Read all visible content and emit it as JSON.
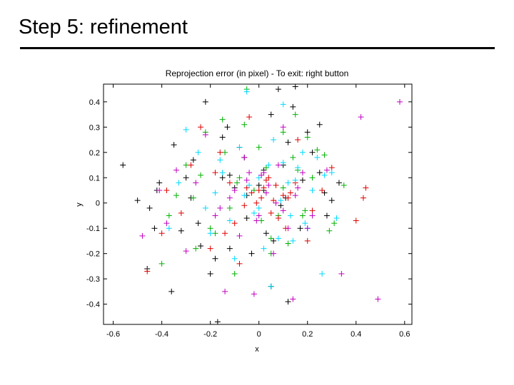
{
  "slide": {
    "title": "Step 5: refinement"
  },
  "chart_data": {
    "type": "scatter",
    "title": "Reprojection error (in pixel) - To exit: right button",
    "xlabel": "x",
    "ylabel": "y",
    "xlim": [
      -0.64,
      0.63
    ],
    "ylim": [
      -0.48,
      0.47
    ],
    "xticks": [
      "-0.6",
      "-0.4",
      "-0.2",
      "0",
      "0.2",
      "0.4",
      "0.6"
    ],
    "yticks": [
      "0.4",
      "0.3",
      "0.2",
      "0.1",
      "0",
      "-0.1",
      "-0.2",
      "-0.3",
      "-0.4"
    ],
    "marker": "+",
    "grid": false,
    "series": [
      {
        "color": "#000000",
        "x": [
          -0.56,
          -0.5,
          -0.43,
          -0.46,
          -0.42,
          -0.41,
          -0.35,
          -0.32,
          -0.27,
          -0.22,
          -0.17,
          -0.13,
          -0.12,
          -0.08,
          -0.05,
          0.0,
          0.05,
          0.08,
          0.12,
          0.15,
          0.2,
          0.25,
          0.27,
          0.3,
          0.17,
          0.02,
          -0.03,
          -0.1,
          -0.15,
          -0.2,
          -0.25,
          -0.28,
          0.33,
          0.12,
          0.05,
          -0.45,
          -0.36,
          -0.15,
          0.03,
          0.1,
          0.22,
          0.28,
          -0.05,
          0.09,
          -0.3,
          -0.24,
          0.14,
          0.25,
          -0.18,
          0.18,
          0.02,
          -0.06,
          0.06,
          0.11,
          -0.12
        ],
        "y": [
          0.15,
          0.01,
          -0.1,
          -0.26,
          0.05,
          0.08,
          0.23,
          -0.11,
          0.17,
          0.4,
          -0.47,
          0.3,
          -0.18,
          0.22,
          -0.06,
          0.07,
          0.35,
          0.45,
          -0.39,
          0.46,
          0.28,
          0.31,
          0.04,
          0.01,
          -0.1,
          0.13,
          -0.2,
          0.06,
          0.26,
          -0.28,
          -0.08,
          0.02,
          0.08,
          0.24,
          -0.33,
          -0.02,
          -0.35,
          0.1,
          -0.12,
          0.15,
          0.2,
          -0.05,
          0.03,
          -0.01,
          0.1,
          -0.17,
          0.38,
          0.12,
          -0.22,
          0.09,
          0.05,
          0.18,
          -0.15,
          0.02,
          0.11
        ]
      },
      {
        "color": "#00b000",
        "x": [
          -0.4,
          -0.37,
          -0.34,
          -0.3,
          -0.26,
          -0.22,
          -0.2,
          -0.15,
          -0.1,
          -0.05,
          0.0,
          0.05,
          0.1,
          0.15,
          0.18,
          0.22,
          0.27,
          0.31,
          0.35,
          0.05,
          0.1,
          -0.08,
          -0.12,
          0.14,
          -0.02,
          0.2,
          -0.18,
          0.24,
          -0.27,
          0.08,
          0.03,
          0.12,
          -0.06,
          -0.14,
          0.19,
          0.29,
          -0.24,
          0.01,
          -0.09,
          0.16
        ],
        "y": [
          -0.24,
          -0.05,
          0.03,
          0.15,
          -0.18,
          0.28,
          -0.1,
          0.33,
          -0.28,
          0.45,
          0.22,
          -0.14,
          0.06,
          0.35,
          -0.05,
          0.1,
          0.19,
          -0.08,
          0.07,
          -0.2,
          0.28,
          0.1,
          -0.02,
          0.18,
          0.05,
          0.26,
          -0.12,
          0.21,
          0.02,
          -0.05,
          0.14,
          -0.16,
          0.31,
          0.2,
          -0.03,
          -0.11,
          0.11,
          -0.07,
          0.08,
          0.13
        ]
      },
      {
        "color": "#e00000",
        "x": [
          -0.46,
          -0.4,
          -0.38,
          -0.32,
          -0.28,
          -0.24,
          -0.2,
          -0.16,
          -0.12,
          -0.08,
          -0.04,
          0.0,
          0.04,
          0.08,
          0.12,
          0.16,
          0.2,
          0.26,
          0.3,
          0.4,
          0.44,
          0.43,
          -0.1,
          0.06,
          -0.03,
          0.02,
          -0.06,
          0.1,
          0.15,
          -0.18,
          0.22,
          0.07,
          0.01,
          -0.01,
          0.03,
          -0.05,
          0.11,
          0.05,
          0.13,
          -0.14
        ],
        "y": [
          -0.27,
          -0.12,
          0.05,
          -0.04,
          0.15,
          0.3,
          -0.18,
          0.2,
          0.08,
          -0.24,
          0.34,
          0.05,
          0.1,
          -0.06,
          0.02,
          0.25,
          -0.15,
          0.05,
          0.14,
          -0.07,
          0.06,
          0.02,
          -0.08,
          0.01,
          0.04,
          0.06,
          -0.01,
          0.03,
          0.08,
          0.12,
          -0.03,
          0.07,
          0.02,
          0.0,
          0.09,
          0.06,
          -0.1,
          -0.04,
          0.04,
          -0.12
        ]
      },
      {
        "color": "#00d8ff",
        "x": [
          -0.37,
          -0.33,
          -0.3,
          -0.25,
          -0.2,
          -0.15,
          -0.1,
          -0.05,
          0.0,
          0.05,
          0.1,
          0.14,
          0.18,
          0.22,
          0.26,
          0.3,
          0.32,
          0.04,
          -0.02,
          -0.08,
          0.08,
          0.12,
          -0.12,
          0.16,
          0.2,
          -0.18,
          0.24,
          0.02,
          0.06,
          -0.04,
          0.09,
          -0.22,
          0.1,
          0.13,
          -0.06,
          0.0,
          0.15,
          0.19,
          -0.16,
          0.27
        ],
        "y": [
          -0.1,
          0.08,
          0.29,
          0.2,
          -0.12,
          0.12,
          -0.22,
          0.44,
          0.1,
          -0.33,
          0.39,
          -0.15,
          0.2,
          0.05,
          -0.28,
          0.12,
          -0.06,
          0.15,
          -0.04,
          0.22,
          -0.14,
          0.08,
          -0.07,
          0.14,
          -0.1,
          0.04,
          0.18,
          -0.18,
          0.25,
          0.07,
          0.01,
          -0.02,
          0.16,
          -0.05,
          0.03,
          -0.02,
          0.09,
          -0.08,
          0.17,
          0.11
        ]
      },
      {
        "color": "#c000c0",
        "x": [
          -0.48,
          -0.41,
          -0.38,
          -0.34,
          -0.3,
          -0.26,
          -0.22,
          -0.18,
          -0.14,
          -0.1,
          -0.06,
          -0.02,
          0.02,
          0.06,
          0.1,
          0.14,
          0.18,
          0.22,
          0.28,
          0.34,
          0.42,
          0.49,
          0.58,
          0.2,
          -0.08,
          0.04,
          -0.04,
          0.0,
          0.08,
          -0.12,
          0.12,
          0.16,
          -0.16,
          0.03,
          -0.01,
          0.07,
          -0.05,
          0.1,
          0.01,
          0.15
        ],
        "y": [
          -0.13,
          0.05,
          -0.08,
          0.13,
          -0.19,
          0.08,
          0.27,
          -0.05,
          -0.35,
          0.05,
          0.18,
          -0.36,
          0.12,
          -0.2,
          0.3,
          -0.38,
          0.12,
          -0.05,
          0.13,
          -0.28,
          0.34,
          -0.38,
          0.4,
          -0.1,
          -0.13,
          0.07,
          0.12,
          -0.05,
          0.15,
          0.02,
          -0.1,
          0.06,
          -0.02,
          0.04,
          -0.07,
          0.0,
          0.09,
          -0.03,
          0.11,
          0.03
        ]
      }
    ]
  }
}
